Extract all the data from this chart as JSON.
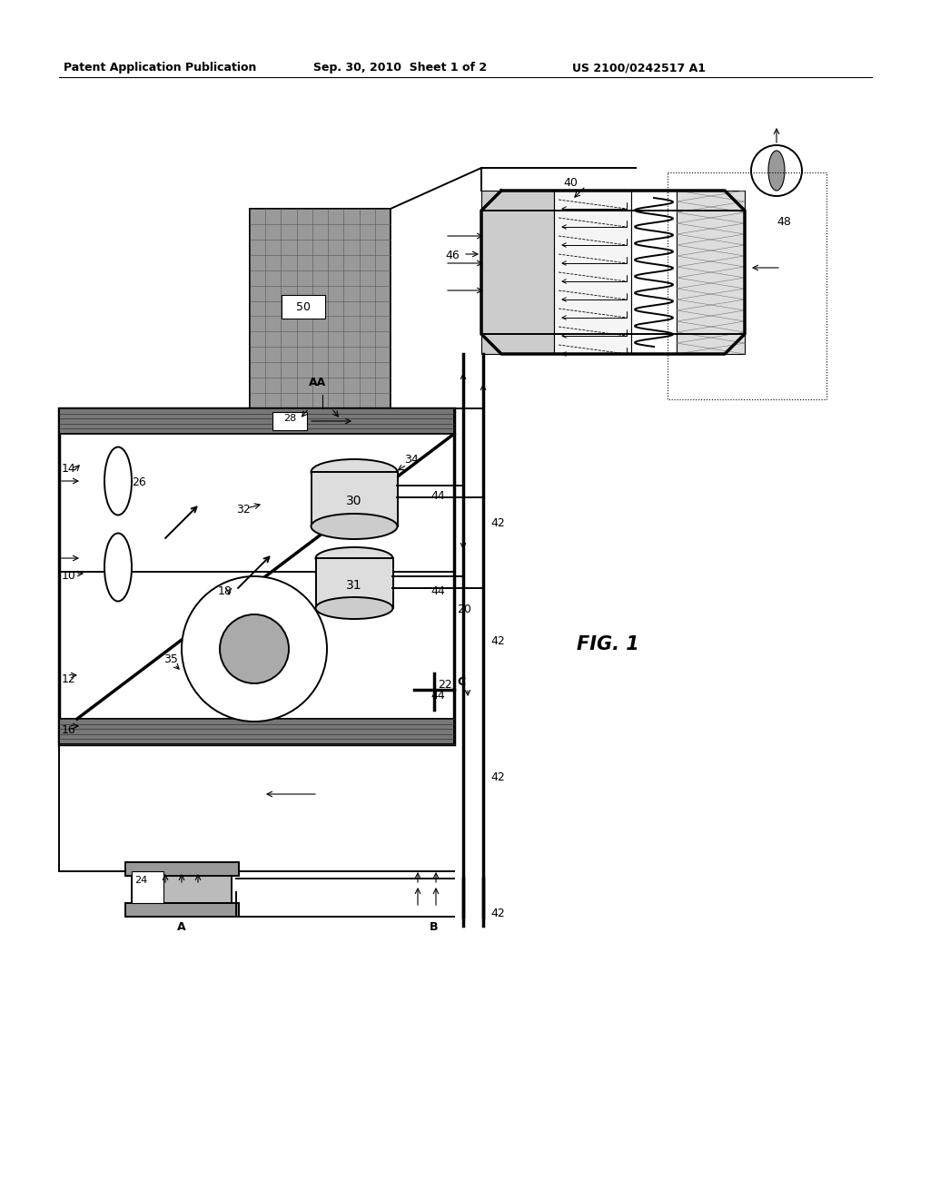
{
  "title_left": "Patent Application Publication",
  "title_mid": "Sep. 30, 2010  Sheet 1 of 2",
  "title_right": "US 2100/0242517 A1",
  "fig_label": "FIG. 1",
  "bg_color": "#ffffff",
  "lc": "#000000",
  "gray1": "#aaaaaa",
  "gray2": "#888888",
  "gray3": "#cccccc",
  "gray4": "#555555",
  "gray5": "#999999",
  "gray6": "#bbbbbb",
  "gray7": "#dddddd",
  "stripe": "#777777"
}
